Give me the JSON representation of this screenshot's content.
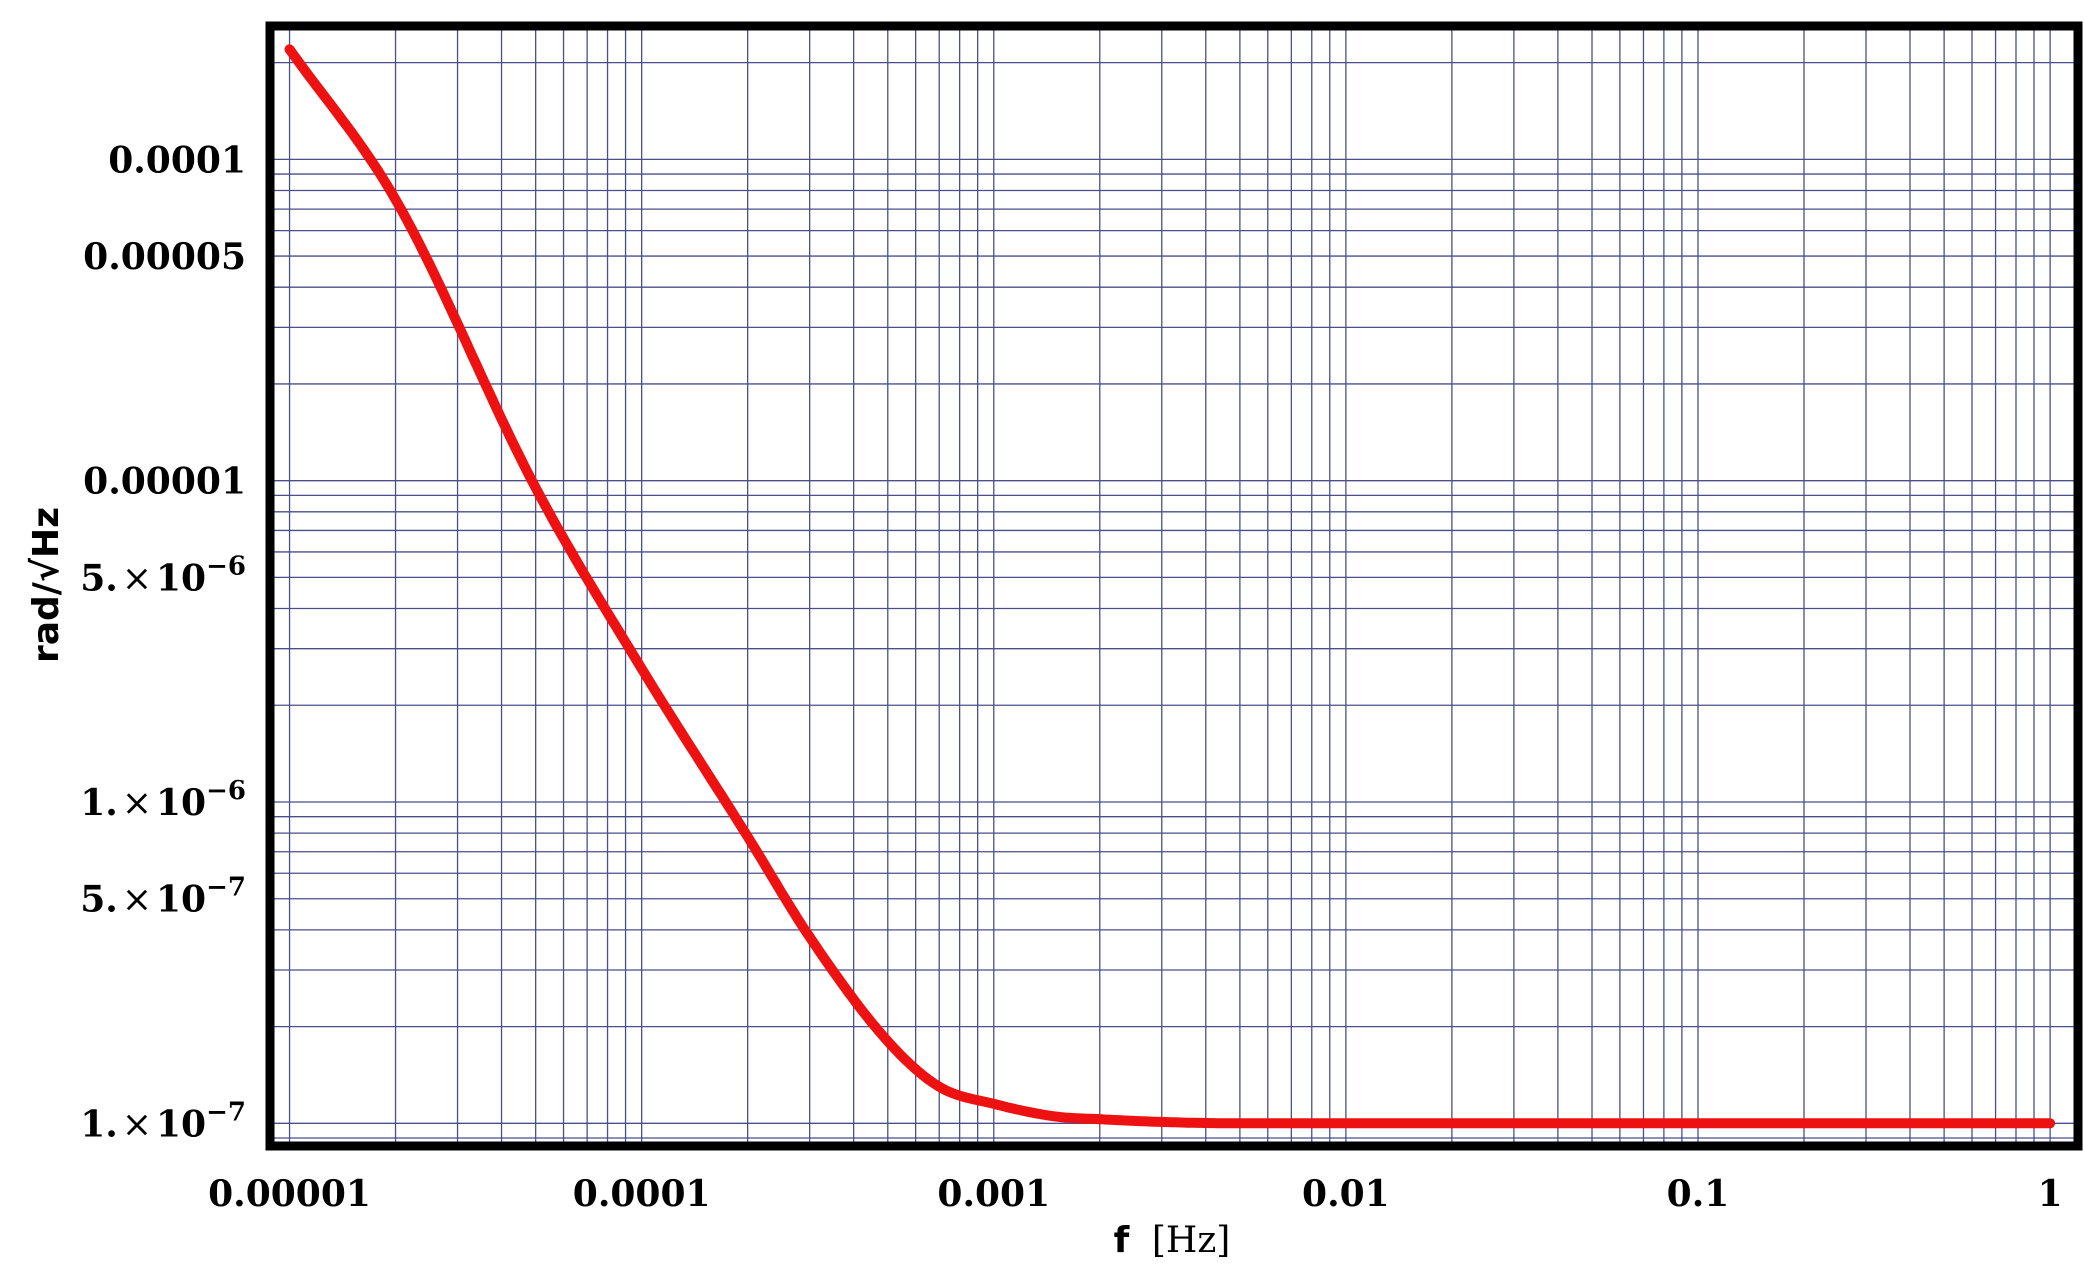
{
  "chart_data": {
    "type": "line",
    "x_scale": "log",
    "y_scale": "log",
    "xlim": [
      8.8e-06,
      1.2
    ],
    "ylim": [
      8.5e-08,
      0.00026
    ],
    "xlabel": "f",
    "xlabel_unit": "[Hz]",
    "ylabel": "rad/√Hz",
    "grid": true,
    "x_ticks": [
      {
        "value": 1e-05,
        "label": "0.00001"
      },
      {
        "value": 0.0001,
        "label": "0.0001"
      },
      {
        "value": 0.001,
        "label": "0.001"
      },
      {
        "value": 0.01,
        "label": "0.01"
      },
      {
        "value": 0.1,
        "label": "0.1"
      },
      {
        "value": 1,
        "label": "1"
      }
    ],
    "y_ticks": [
      {
        "value": 1e-07,
        "mantissa": "1.",
        "exponent": "−7"
      },
      {
        "value": 5e-07,
        "mantissa": "5.",
        "exponent": "−7"
      },
      {
        "value": 1e-06,
        "mantissa": "1.",
        "exponent": "−6"
      },
      {
        "value": 5e-06,
        "mantissa": "5.",
        "exponent": "−6"
      },
      {
        "value": 1e-05,
        "plain": "0.00001"
      },
      {
        "value": 5e-05,
        "plain": "0.00005"
      },
      {
        "value": 0.0001,
        "plain": "0.0001"
      }
    ],
    "series": [
      {
        "color": "#ee1111",
        "x": [
          1e-05,
          2e-05,
          5e-05,
          0.0001,
          0.0002,
          0.0003,
          0.0005,
          0.0007,
          0.001,
          0.0015,
          0.002,
          0.003,
          0.005,
          0.01,
          0.1,
          1
        ],
        "y": [
          0.00022,
          7.5e-05,
          9.5e-06,
          2.6e-06,
          7.8e-07,
          3.8e-07,
          1.8e-07,
          1.3e-07,
          1.15e-07,
          1.05e-07,
          1.03e-07,
          1.01e-07,
          1e-07,
          1e-07,
          1e-07,
          1e-07
        ]
      }
    ]
  }
}
